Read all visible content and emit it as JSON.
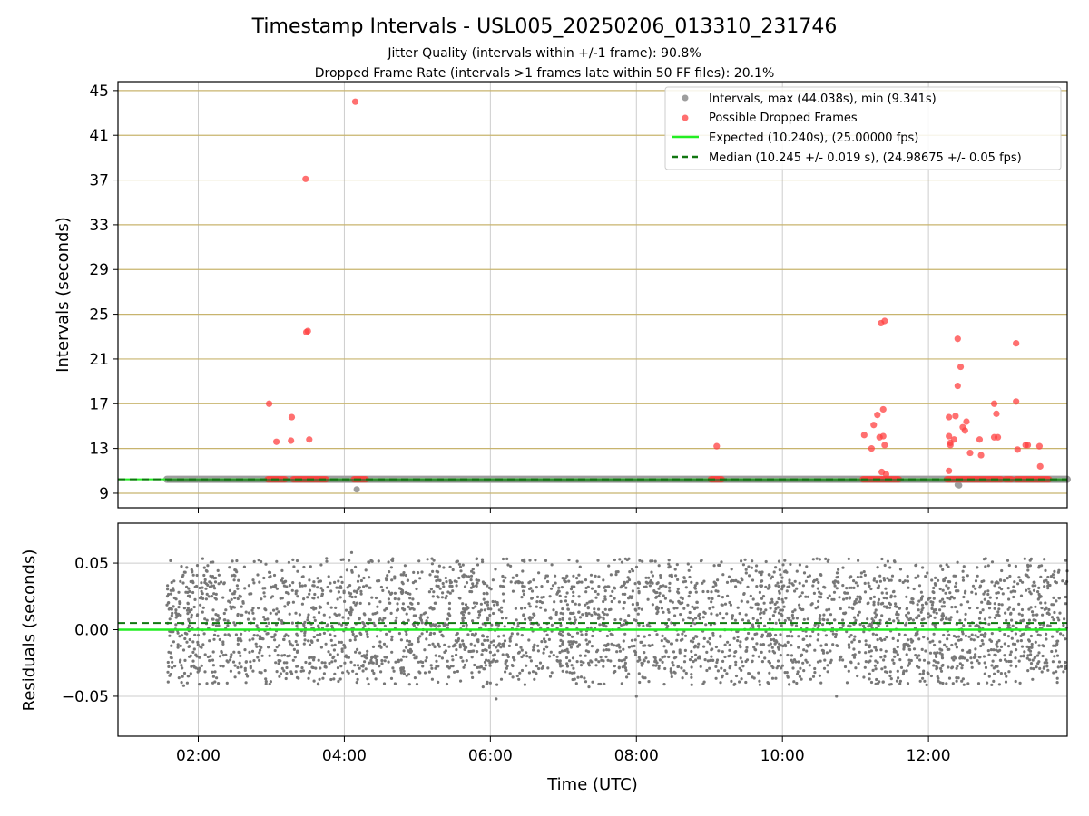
{
  "chart_data": [
    {
      "type": "scatter",
      "title": "Timestamp Intervals - USL005_20250206_013310_231746",
      "subtitles": [
        "Jitter Quality (intervals within +/-1 frame): 90.8%",
        "Dropped Frame Rate (intervals >1 frames late within 50 FF files): 20.1%"
      ],
      "ylabel": "Intervals (seconds)",
      "xlabel": "",
      "xlim": [
        0.9,
        13.9
      ],
      "ylim": [
        7.7,
        45.8
      ],
      "y_ticks": [
        9,
        13,
        17,
        21,
        25,
        29,
        33,
        37,
        41,
        45
      ],
      "x_ticks": [
        2,
        4,
        6,
        8,
        10,
        12
      ],
      "grid_y_color": "#c8b46e",
      "grid_x_color": "#cccccc",
      "legend_position": "upper right",
      "legend": [
        {
          "label": "Intervals, max (44.038s), min (9.341s)",
          "marker": "circle",
          "color": "#9e9e9e"
        },
        {
          "label": "Possible Dropped Frames",
          "marker": "circle",
          "color": "#ff4040"
        },
        {
          "label": "Expected (10.240s), (25.00000 fps)",
          "marker": "solid-line",
          "color": "#22ee22"
        },
        {
          "label": "Median (10.245 +/- 0.019 s), (24.98675 +/- 0.05 fps)",
          "marker": "dashed-line",
          "color": "#117711"
        }
      ],
      "series": [
        {
          "name": "Intervals, max (44.038s), min (9.341s)",
          "color": "#9e9e9e",
          "band": {
            "x_start": 1.57,
            "x_end": 13.9,
            "y": 10.24
          },
          "points": [
            [
              4.17,
              9.34
            ],
            [
              12.42,
              9.7
            ],
            [
              12.4,
              9.75
            ]
          ]
        },
        {
          "name": "Possible Dropped Frames",
          "color": "#ff4040",
          "clusters": [
            {
              "x_start": 2.95,
              "x_end": 3.2,
              "y": 10.24
            },
            {
              "x_start": 3.3,
              "x_end": 3.75,
              "y": 10.24
            },
            {
              "x_start": 4.13,
              "x_end": 4.3,
              "y": 10.24
            },
            {
              "x_start": 9.02,
              "x_end": 9.17,
              "y": 10.24
            },
            {
              "x_start": 11.1,
              "x_end": 11.6,
              "y": 10.24
            },
            {
              "x_start": 12.25,
              "x_end": 13.0,
              "y": 10.24
            },
            {
              "x_start": 13.05,
              "x_end": 13.15,
              "y": 10.24
            },
            {
              "x_start": 13.2,
              "x_end": 13.65,
              "y": 10.24
            }
          ],
          "points": [
            [
              2.97,
              17.0
            ],
            [
              3.07,
              13.6
            ],
            [
              3.27,
              13.7
            ],
            [
              3.28,
              15.8
            ],
            [
              3.47,
              37.1
            ],
            [
              3.48,
              23.4
            ],
            [
              3.5,
              23.5
            ],
            [
              3.52,
              13.8
            ],
            [
              4.15,
              44.0
            ],
            [
              9.1,
              13.2
            ],
            [
              11.12,
              14.2
            ],
            [
              11.22,
              13.0
            ],
            [
              11.25,
              15.1
            ],
            [
              11.3,
              16.0
            ],
            [
              11.33,
              14.0
            ],
            [
              11.35,
              24.2
            ],
            [
              11.38,
              16.5
            ],
            [
              11.4,
              24.4
            ],
            [
              11.4,
              13.3
            ],
            [
              11.38,
              14.1
            ],
            [
              11.36,
              10.9
            ],
            [
              11.42,
              10.7
            ],
            [
              12.28,
              15.8
            ],
            [
              12.28,
              14.1
            ],
            [
              12.3,
              13.5
            ],
            [
              12.28,
              11.0
            ],
            [
              12.3,
              13.3
            ],
            [
              12.35,
              13.8
            ],
            [
              12.37,
              15.9
            ],
            [
              12.4,
              22.8
            ],
            [
              12.4,
              18.6
            ],
            [
              12.44,
              20.3
            ],
            [
              12.47,
              14.9
            ],
            [
              12.5,
              14.6
            ],
            [
              12.52,
              15.4
            ],
            [
              12.57,
              12.6
            ],
            [
              12.7,
              13.8
            ],
            [
              12.72,
              12.4
            ],
            [
              12.9,
              17.0
            ],
            [
              12.9,
              14.0
            ],
            [
              12.93,
              16.1
            ],
            [
              12.95,
              14.0
            ],
            [
              13.2,
              22.4
            ],
            [
              13.2,
              17.2
            ],
            [
              13.22,
              12.9
            ],
            [
              13.33,
              13.3
            ],
            [
              13.36,
              13.3
            ],
            [
              13.52,
              13.2
            ],
            [
              13.53,
              11.4
            ]
          ]
        },
        {
          "name": "Expected (10.240s), (25.00000 fps)",
          "color": "#22ee22",
          "y": 10.24,
          "style": "solid"
        },
        {
          "name": "Median (10.245 +/- 0.019 s), (24.98675 +/- 0.05 fps)",
          "color": "#117711",
          "y": 10.245,
          "style": "dashed"
        }
      ]
    },
    {
      "type": "scatter",
      "title": "",
      "xlabel": "Time (UTC)",
      "ylabel": "Residuals (seconds)",
      "xlim": [
        0.9,
        13.9
      ],
      "ylim": [
        -0.08,
        0.08
      ],
      "y_ticks": [
        0.05,
        0.0,
        -0.05
      ],
      "y_tick_labels": [
        "0.05",
        "0.00",
        "−0.05"
      ],
      "x_ticks": [
        2,
        4,
        6,
        8,
        10,
        12
      ],
      "x_tick_labels": [
        "02:00",
        "04:00",
        "06:00",
        "08:00",
        "10:00",
        "12:00"
      ],
      "grid_color": "#cccccc",
      "series": [
        {
          "name": "Residuals",
          "color": "#777777",
          "x_range": [
            1.57,
            13.9
          ],
          "y_range": [
            -0.052,
            0.059
          ],
          "count": 3600,
          "levels": [
            -0.04,
            -0.036,
            -0.032,
            -0.028,
            -0.024,
            -0.02,
            -0.016,
            -0.012,
            -0.008,
            -0.004,
            0.0,
            0.004,
            0.008,
            0.012,
            0.016,
            0.02,
            0.024,
            0.028,
            0.032,
            0.036,
            0.04,
            0.044,
            0.048,
            0.052
          ],
          "outliers": [
            [
              1.8,
              -0.042
            ],
            [
              2.2,
              -0.04
            ],
            [
              4.1,
              0.058
            ],
            [
              5.9,
              -0.043
            ],
            [
              6.08,
              -0.052
            ],
            [
              7.35,
              -0.043
            ],
            [
              8.0,
              -0.05
            ],
            [
              10.74,
              -0.05
            ],
            [
              6.0,
              -0.04
            ]
          ]
        },
        {
          "name": "Expected",
          "color": "#22ee22",
          "y": 0.0,
          "style": "solid"
        },
        {
          "name": "Median",
          "color": "#117711",
          "y": 0.005,
          "style": "dashed"
        }
      ]
    }
  ]
}
